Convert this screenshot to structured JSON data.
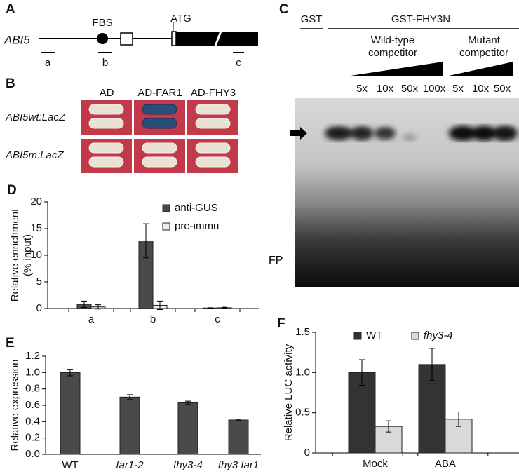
{
  "panel_a": {
    "label": "A",
    "gene": "ABI5",
    "site": "FBS",
    "start": "ATG",
    "regions": [
      "a",
      "b",
      "c"
    ]
  },
  "panel_b": {
    "label": "B",
    "columns": [
      "AD",
      "AD-FAR1",
      "AD-FHY3"
    ],
    "rows": [
      "ABI5wt:LacZ",
      "ABI5m:LacZ"
    ]
  },
  "panel_c": {
    "label": "C",
    "control": "GST",
    "protein": "GST-FHY3N",
    "wild_type": [
      "Wild-type",
      "competitor"
    ],
    "mutant": [
      "Mutant",
      "competitor"
    ],
    "lanes": [
      "5x",
      "10x",
      "50x",
      "100x",
      "5x",
      "10x",
      "50x"
    ],
    "free_probe": "FP"
  },
  "chart_data": [
    {
      "type": "bar",
      "panel": "D",
      "ylabel": [
        "Relative enrichment",
        "(% input)"
      ],
      "categories": [
        "a",
        "b",
        "c"
      ],
      "series": [
        {
          "name": "anti-GUS",
          "color": "#4a4a4a",
          "values": [
            0.8,
            12.7,
            0.1
          ],
          "errors": [
            0.6,
            3.2,
            0.05
          ]
        },
        {
          "name": "pre-immu",
          "color": "#ebebeb",
          "values": [
            0.3,
            0.6,
            0.15
          ],
          "errors": [
            0.4,
            0.8,
            0.1
          ]
        }
      ],
      "ylim": [
        0,
        20
      ],
      "yticks": [
        0,
        5,
        10,
        15,
        20
      ],
      "legend": "upper right"
    },
    {
      "type": "bar",
      "panel": "E",
      "ylabel": [
        "Relative expression"
      ],
      "categories": [
        "WT",
        "far1-2",
        "fhy3-4",
        "fhy3 far1"
      ],
      "values": [
        1.0,
        0.7,
        0.63,
        0.42
      ],
      "errors": [
        0.04,
        0.03,
        0.02,
        0.01
      ],
      "color": "#4a4a4a",
      "ylim": [
        0,
        1.2
      ],
      "yticks": [
        {
          "value": 0,
          "label": "0.0"
        },
        0.2,
        0.4,
        0.6,
        0.8,
        {
          "value": 1,
          "label": "1.0"
        },
        1.2
      ]
    },
    {
      "type": "bar",
      "panel": "F",
      "ylabel": [
        "Relative LUC activity"
      ],
      "categories": [
        "Mock",
        "ABA"
      ],
      "series": [
        {
          "name": "WT",
          "color": "#333333",
          "values": [
            1.0,
            1.1
          ],
          "errors": [
            0.16,
            0.2
          ]
        },
        {
          "name": "fhy3-4",
          "color": "#d9d9d9",
          "values": [
            0.33,
            0.42
          ],
          "errors": [
            0.07,
            0.09
          ]
        }
      ],
      "ylim": [
        0,
        1.5
      ],
      "yticks": [
        0,
        0.5,
        {
          "value": 1,
          "label": "1.0"
        },
        1.5
      ],
      "legend": "top"
    }
  ]
}
